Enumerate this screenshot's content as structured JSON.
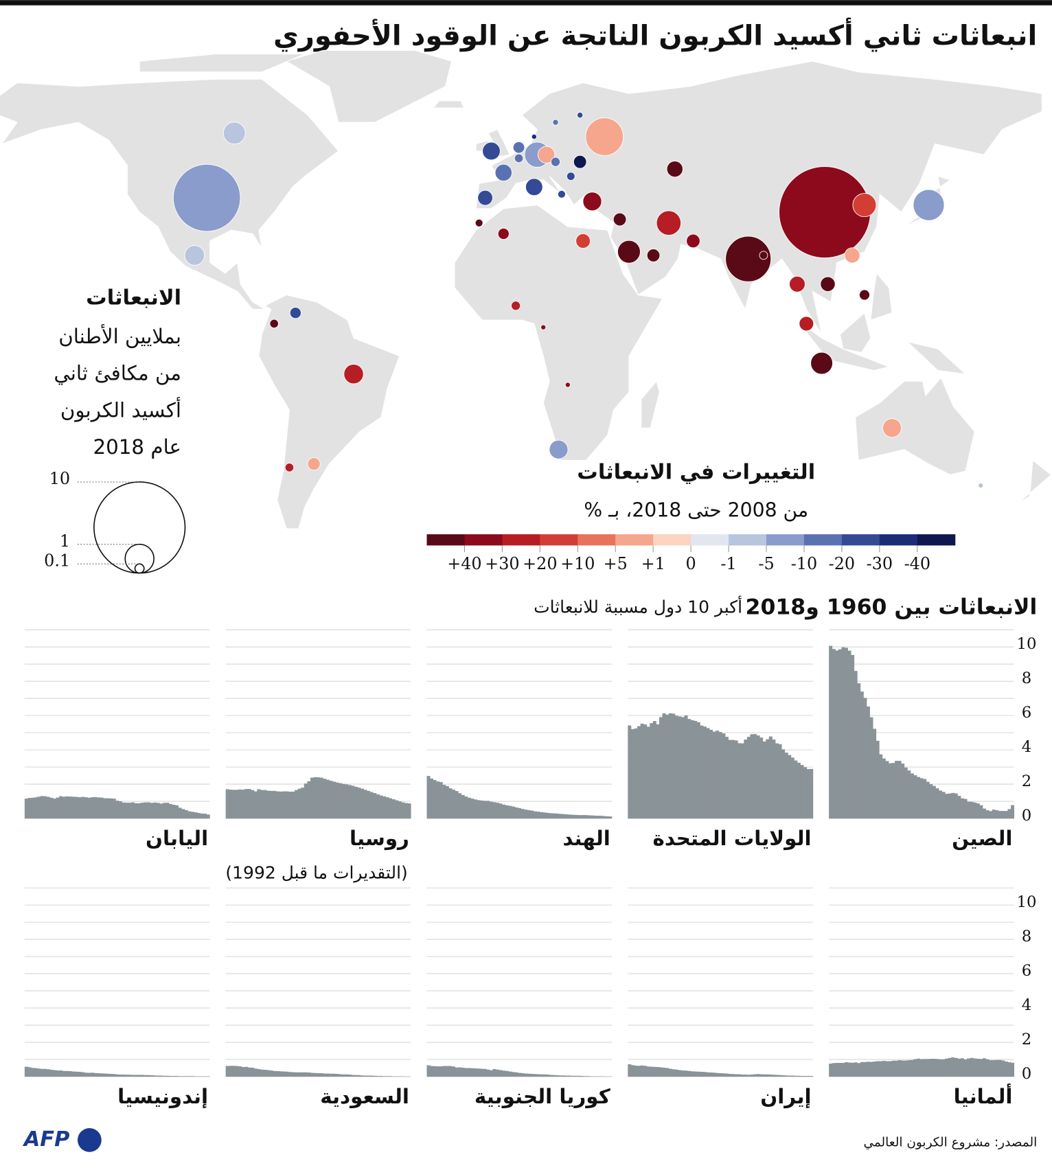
{
  "title": "انبعاثات ثاني أكسيد الكربون الناتجة عن الوقود الأحفوري",
  "source": "المصدر: مشروع الكربون العالمي",
  "logo": "AFP",
  "chart_data": [
    {
      "type": "bubble-map",
      "size_legend": {
        "title": "الانبعاثات",
        "lines": [
          "بملايين الأطنان",
          "من مكافئ ثاني",
          "أكسيد الكربون",
          "عام 2018"
        ],
        "values": [
          10,
          1,
          0.1
        ]
      },
      "color_legend": {
        "title": "التغييرات في الانبعاثات",
        "subtitle": "من 2008 حتى 2018، بـ %",
        "ticks": [
          {
            "value": 40,
            "label": "+40"
          },
          {
            "value": 30,
            "label": "+30"
          },
          {
            "value": 20,
            "label": "+20"
          },
          {
            "value": 10,
            "label": "+10"
          },
          {
            "value": 5,
            "label": "+5"
          },
          {
            "value": 1,
            "label": "+1"
          },
          0,
          -1,
          -5,
          -10,
          -20,
          -30,
          -40
        ],
        "colors": [
          "#5a0a16",
          "#8c0a1c",
          "#b71d24",
          "#d33e34",
          "#e8735c",
          "#f5a68c",
          "#fbd4c2",
          "#e2e7ef",
          "#b9c4de",
          "#8a9ccb",
          "#5b72b2",
          "#344a97",
          "#1d2c7a",
          "#0f1750"
        ]
      },
      "bubbles": [
        {
          "lon": 104,
          "lat": 35,
          "value": 10.06,
          "change": 31
        },
        {
          "lon": -98,
          "lat": 39,
          "value": 5.42,
          "change": -7
        },
        {
          "lon": 79,
          "lat": 22,
          "value": 2.48,
          "change": 68
        },
        {
          "lon": 32,
          "lat": 56,
          "value": 1.71,
          "change": 3
        },
        {
          "lon": 138,
          "lat": 37,
          "value": 1.16,
          "change": -7
        },
        {
          "lon": 10,
          "lat": 51,
          "value": 0.76,
          "change": -9
        },
        {
          "lon": 53,
          "lat": 32,
          "value": 0.72,
          "change": 25
        },
        {
          "lon": 117,
          "lat": 37,
          "value": 0.66,
          "change": 15
        },
        {
          "lon": 40,
          "lat": 24,
          "value": 0.62,
          "change": 45
        },
        {
          "lon": 103,
          "lat": -7,
          "value": 0.58,
          "change": 50
        },
        {
          "lon": -89,
          "lat": 57,
          "value": 0.58,
          "change": -2
        },
        {
          "lon": -102,
          "lat": 23,
          "value": 0.47,
          "change": -4
        },
        {
          "lon": -50,
          "lat": -10,
          "value": 0.46,
          "change": 22
        },
        {
          "lon": 17,
          "lat": -31,
          "value": 0.42,
          "change": -7
        },
        {
          "lon": 126,
          "lat": -25,
          "value": 0.42,
          "change": 3
        },
        {
          "lon": 28,
          "lat": 38,
          "value": 0.42,
          "change": 39
        },
        {
          "lon": -5,
          "lat": 52,
          "value": 0.38,
          "change": -30
        },
        {
          "lon": 9,
          "lat": 42,
          "value": 0.35,
          "change": -25
        },
        {
          "lon": -1,
          "lat": 46,
          "value": 0.34,
          "change": -14
        },
        {
          "lon": 13,
          "lat": 51,
          "value": 0.34,
          "change": 2
        },
        {
          "lon": 55,
          "lat": 47,
          "value": 0.31,
          "change": 45
        },
        {
          "lon": 95,
          "lat": 15,
          "value": 0.3,
          "change": 22
        },
        {
          "lon": 113,
          "lat": 23,
          "value": 0.28,
          "change": 2
        },
        {
          "lon": -7,
          "lat": 39,
          "value": 0.27,
          "change": -22
        },
        {
          "lon": 105,
          "lat": 15,
          "value": 0.26,
          "change": 120
        },
        {
          "lon": 98,
          "lat": 4,
          "value": 0.25,
          "change": 24
        },
        {
          "lon": 25,
          "lat": 27,
          "value": 0.25,
          "change": 15
        },
        {
          "lon": 61,
          "lat": 27,
          "value": 0.22,
          "change": 35
        },
        {
          "lon": 37,
          "lat": 33,
          "value": 0.2,
          "change": 70
        },
        {
          "lon": 48,
          "lat": 23,
          "value": 0.2,
          "change": 50
        },
        {
          "lon": 24,
          "lat": 49,
          "value": 0.2,
          "change": -45
        },
        {
          "lon": -63,
          "lat": -35,
          "value": 0.19,
          "change": 2
        },
        {
          "lon": -1,
          "lat": 29,
          "value": 0.15,
          "change": 35
        },
        {
          "lon": -69,
          "lat": 7,
          "value": 0.15,
          "change": -30
        },
        {
          "lon": 4,
          "lat": 53,
          "value": 0.16,
          "change": -12
        },
        {
          "lon": 117,
          "lat": 12,
          "value": 0.13,
          "change": 60
        },
        {
          "lon": 3,
          "lat": 9,
          "value": 0.1,
          "change": 20
        },
        {
          "lon": -76,
          "lat": 4,
          "value": 0.09,
          "change": 40
        },
        {
          "lon": -71,
          "lat": -36,
          "value": 0.09,
          "change": 25
        },
        {
          "lon": 16,
          "lat": 49,
          "value": 0.1,
          "change": -15
        },
        {
          "lon": 84,
          "lat": 23,
          "value": 0.08,
          "change": 80
        },
        {
          "lon": -9,
          "lat": 32,
          "value": 0.07,
          "change": 40
        },
        {
          "lon": 21,
          "lat": 45,
          "value": 0.08,
          "change": -25
        },
        {
          "lon": 18,
          "lat": 40,
          "value": 0.07,
          "change": -30
        },
        {
          "lon": 4,
          "lat": 50,
          "value": 0.09,
          "change": -18
        },
        {
          "lon": 16,
          "lat": 60,
          "value": 0.04,
          "change": -20
        },
        {
          "lon": 24,
          "lat": 62,
          "value": 0.04,
          "change": -25
        },
        {
          "lon": 9,
          "lat": 56,
          "value": 0.03,
          "change": -35
        },
        {
          "lon": 155,
          "lat": -41,
          "value": 0.03,
          "change": -5
        },
        {
          "lon": 20,
          "lat": -13,
          "value": 0.03,
          "change": 35
        },
        {
          "lon": 12,
          "lat": 3,
          "value": 0.03,
          "change": 30
        }
      ]
    },
    {
      "type": "area-multiples",
      "title": "الانبعاثات بين 1960 و2018",
      "subtitle": "أكبر 10 دول مسببة للانبعاثات",
      "xreverse": true,
      "color": "#8a9397",
      "ylim": [
        0,
        11
      ],
      "yticks": [
        0,
        2,
        4,
        6,
        8,
        10
      ],
      "minor_yticks": [
        1,
        3,
        5,
        7,
        9,
        11
      ],
      "grid": true,
      "series": [
        {
          "name": "الصين",
          "values": [
            0.78,
            0.55,
            0.44,
            0.44,
            0.44,
            0.48,
            0.52,
            0.43,
            0.48,
            0.58,
            0.77,
            0.88,
            0.93,
            0.97,
            0.98,
            1.14,
            1.17,
            1.32,
            1.46,
            1.49,
            1.46,
            1.44,
            1.55,
            1.63,
            1.76,
            1.9,
            2.0,
            2.14,
            2.3,
            2.35,
            2.42,
            2.52,
            2.63,
            2.8,
            2.97,
            3.2,
            3.36,
            3.36,
            3.24,
            3.22,
            3.35,
            3.5,
            3.74,
            4.53,
            5.23,
            5.9,
            6.53,
            7.03,
            7.4,
            7.88,
            8.6,
            9.53,
            9.78,
            9.95,
            9.98,
            9.86,
            9.79,
            9.88,
            10.06
          ]
        },
        {
          "name": "الولايات المتحدة",
          "values": [
            2.89,
            2.88,
            2.99,
            3.12,
            3.25,
            3.38,
            3.55,
            3.7,
            3.84,
            4.03,
            4.33,
            4.38,
            4.6,
            4.78,
            4.62,
            4.49,
            4.72,
            4.84,
            4.92,
            4.91,
            4.76,
            4.6,
            4.38,
            4.39,
            4.55,
            4.58,
            4.58,
            4.76,
            4.96,
            5.04,
            5.12,
            5.06,
            5.17,
            5.27,
            5.36,
            5.42,
            5.61,
            5.69,
            5.73,
            5.8,
            6.01,
            5.91,
            5.95,
            5.99,
            6.11,
            6.13,
            6.05,
            6.13,
            5.91,
            5.49,
            5.68,
            5.56,
            5.35,
            5.48,
            5.53,
            5.38,
            5.25,
            5.21,
            5.42
          ]
        },
        {
          "name": "الهند",
          "values": [
            0.12,
            0.13,
            0.14,
            0.16,
            0.16,
            0.17,
            0.18,
            0.19,
            0.2,
            0.2,
            0.2,
            0.21,
            0.22,
            0.23,
            0.24,
            0.26,
            0.27,
            0.29,
            0.3,
            0.31,
            0.33,
            0.35,
            0.37,
            0.4,
            0.42,
            0.46,
            0.49,
            0.52,
            0.56,
            0.61,
            0.65,
            0.7,
            0.74,
            0.77,
            0.81,
            0.87,
            0.92,
            0.95,
            0.98,
            1.03,
            1.03,
            1.05,
            1.07,
            1.11,
            1.16,
            1.21,
            1.28,
            1.37,
            1.47,
            1.6,
            1.68,
            1.76,
            1.89,
            1.96,
            2.12,
            2.16,
            2.24,
            2.33,
            2.48
          ]
        },
        {
          "name": "روسيا",
          "note": "(التقديرات ما قبل 1992)",
          "values": [
            0.88,
            0.9,
            0.94,
            1.0,
            1.06,
            1.12,
            1.18,
            1.24,
            1.29,
            1.34,
            1.41,
            1.48,
            1.54,
            1.61,
            1.67,
            1.74,
            1.8,
            1.85,
            1.91,
            1.95,
            1.99,
            2.02,
            2.06,
            2.1,
            2.15,
            2.2,
            2.26,
            2.32,
            2.38,
            2.4,
            2.41,
            2.38,
            2.17,
            2.04,
            1.8,
            1.74,
            1.66,
            1.57,
            1.56,
            1.58,
            1.58,
            1.57,
            1.58,
            1.61,
            1.61,
            1.62,
            1.66,
            1.66,
            1.71,
            1.58,
            1.66,
            1.72,
            1.72,
            1.68,
            1.69,
            1.67,
            1.67,
            1.68,
            1.71
          ]
        },
        {
          "name": "اليابان",
          "values": [
            0.23,
            0.28,
            0.29,
            0.32,
            0.36,
            0.39,
            0.42,
            0.49,
            0.55,
            0.63,
            0.77,
            0.8,
            0.85,
            0.92,
            0.91,
            0.87,
            0.91,
            0.93,
            0.91,
            0.94,
            0.94,
            0.92,
            0.89,
            0.89,
            0.94,
            0.92,
            0.92,
            0.93,
            1.0,
            1.04,
            1.16,
            1.17,
            1.18,
            1.18,
            1.22,
            1.23,
            1.25,
            1.24,
            1.21,
            1.24,
            1.26,
            1.24,
            1.26,
            1.27,
            1.28,
            1.29,
            1.27,
            1.3,
            1.22,
            1.16,
            1.21,
            1.26,
            1.3,
            1.31,
            1.27,
            1.23,
            1.21,
            1.2,
            1.16
          ]
        },
        {
          "name": "ألمانيا",
          "values": [
            0.81,
            0.84,
            0.88,
            0.94,
            0.97,
            0.97,
            0.96,
            0.96,
            1.01,
            1.07,
            1.03,
            1.04,
            1.06,
            1.09,
            1.06,
            1.0,
            1.07,
            1.05,
            1.09,
            1.12,
            1.09,
            1.05,
            1.01,
            1.01,
            1.03,
            1.04,
            1.04,
            1.03,
            1.03,
            1.02,
            1.05,
            1.02,
            0.97,
            0.96,
            0.94,
            0.94,
            0.96,
            0.93,
            0.93,
            0.9,
            0.9,
            0.92,
            0.9,
            0.9,
            0.88,
            0.86,
            0.87,
            0.85,
            0.85,
            0.79,
            0.83,
            0.81,
            0.82,
            0.84,
            0.8,
            0.8,
            0.8,
            0.79,
            0.76
          ]
        },
        {
          "name": "إيران",
          "values": [
            0.04,
            0.04,
            0.04,
            0.04,
            0.05,
            0.05,
            0.06,
            0.06,
            0.07,
            0.08,
            0.09,
            0.1,
            0.11,
            0.12,
            0.13,
            0.13,
            0.14,
            0.15,
            0.14,
            0.12,
            0.11,
            0.12,
            0.12,
            0.14,
            0.14,
            0.15,
            0.16,
            0.18,
            0.19,
            0.2,
            0.21,
            0.23,
            0.24,
            0.25,
            0.27,
            0.28,
            0.29,
            0.3,
            0.31,
            0.33,
            0.35,
            0.36,
            0.38,
            0.41,
            0.43,
            0.46,
            0.5,
            0.52,
            0.54,
            0.56,
            0.57,
            0.58,
            0.59,
            0.63,
            0.65,
            0.63,
            0.64,
            0.67,
            0.72
          ]
        },
        {
          "name": "كوريا الجنوبية",
          "values": [
            0.01,
            0.01,
            0.01,
            0.02,
            0.02,
            0.02,
            0.02,
            0.03,
            0.03,
            0.04,
            0.05,
            0.05,
            0.05,
            0.06,
            0.06,
            0.07,
            0.07,
            0.08,
            0.09,
            0.1,
            0.12,
            0.13,
            0.13,
            0.14,
            0.15,
            0.16,
            0.17,
            0.18,
            0.2,
            0.22,
            0.25,
            0.27,
            0.3,
            0.33,
            0.35,
            0.38,
            0.41,
            0.44,
            0.37,
            0.41,
            0.45,
            0.46,
            0.47,
            0.48,
            0.49,
            0.5,
            0.5,
            0.52,
            0.54,
            0.53,
            0.59,
            0.62,
            0.62,
            0.62,
            0.6,
            0.6,
            0.61,
            0.62,
            0.66
          ]
        },
        {
          "name": "السعودية",
          "values": [
            0.01,
            0.01,
            0.02,
            0.02,
            0.02,
            0.02,
            0.03,
            0.03,
            0.03,
            0.04,
            0.04,
            0.05,
            0.06,
            0.06,
            0.06,
            0.07,
            0.09,
            0.09,
            0.1,
            0.12,
            0.13,
            0.13,
            0.14,
            0.16,
            0.17,
            0.17,
            0.18,
            0.18,
            0.2,
            0.2,
            0.21,
            0.22,
            0.24,
            0.25,
            0.25,
            0.25,
            0.25,
            0.26,
            0.27,
            0.29,
            0.3,
            0.31,
            0.32,
            0.33,
            0.36,
            0.38,
            0.4,
            0.41,
            0.44,
            0.47,
            0.52,
            0.53,
            0.57,
            0.56,
            0.6,
            0.62,
            0.63,
            0.63,
            0.62
          ]
        },
        {
          "name": "إندونيسيا",
          "values": [
            0.02,
            0.02,
            0.02,
            0.02,
            0.02,
            0.03,
            0.03,
            0.03,
            0.03,
            0.03,
            0.04,
            0.04,
            0.04,
            0.05,
            0.05,
            0.06,
            0.06,
            0.07,
            0.08,
            0.09,
            0.09,
            0.1,
            0.1,
            0.1,
            0.1,
            0.11,
            0.11,
            0.12,
            0.12,
            0.13,
            0.15,
            0.16,
            0.17,
            0.18,
            0.19,
            0.2,
            0.21,
            0.23,
            0.22,
            0.23,
            0.26,
            0.28,
            0.29,
            0.3,
            0.32,
            0.33,
            0.33,
            0.36,
            0.36,
            0.38,
            0.4,
            0.43,
            0.45,
            0.45,
            0.47,
            0.5,
            0.51,
            0.55,
            0.58
          ]
        }
      ]
    }
  ]
}
